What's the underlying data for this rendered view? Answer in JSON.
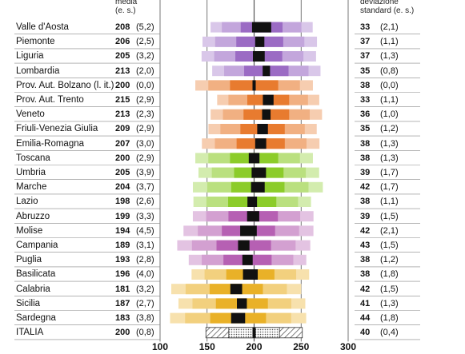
{
  "header": {
    "mean_label_line1": "media",
    "mean_label_line2": "(e. s.)",
    "sd_label_line1": "deviazione",
    "sd_label_line2": "standard (e. s.)"
  },
  "chart_data": {
    "type": "table",
    "xlim": [
      100,
      300
    ],
    "x_ticks": [
      "100",
      "150",
      "200",
      "250",
      "300"
    ],
    "grid": true,
    "columns": [
      "media",
      "(e. s.)",
      "deviazione standard",
      "(e. s.)"
    ],
    "rows": [
      {
        "region": "Valle d'Aosta",
        "mean": "208",
        "mean_se": "(5,2)",
        "sd": "33",
        "sd_se": "(2,1)",
        "color": "#9b6bc4"
      },
      {
        "region": "Piemonte",
        "mean": "206",
        "mean_se": "(2,5)",
        "sd": "37",
        "sd_se": "(1,1)",
        "color": "#9b6bc4"
      },
      {
        "region": "Liguria",
        "mean": "205",
        "mean_se": "(3,2)",
        "sd": "37",
        "sd_se": "(1,3)",
        "color": "#9b6bc4"
      },
      {
        "region": "Lombardia",
        "mean": "213",
        "mean_se": "(2,0)",
        "sd": "35",
        "sd_se": "(0,8)",
        "color": "#9b6bc4"
      },
      {
        "region": "Prov. Aut. Bolzano (l. it.)",
        "mean": "200",
        "mean_se": "(0,0)",
        "sd": "38",
        "sd_se": "(0,0)",
        "color": "#e87b2f"
      },
      {
        "region": "Prov. Aut. Trento",
        "mean": "215",
        "mean_se": "(2,9)",
        "sd": "33",
        "sd_se": "(1,1)",
        "color": "#e87b2f"
      },
      {
        "region": "Veneto",
        "mean": "213",
        "mean_se": "(2,3)",
        "sd": "36",
        "sd_se": "(1,0)",
        "color": "#e87b2f"
      },
      {
        "region": "Friuli-Venezia Giulia",
        "mean": "209",
        "mean_se": "(2,9)",
        "sd": "35",
        "sd_se": "(1,2)",
        "color": "#e87b2f"
      },
      {
        "region": "Emilia-Romagna",
        "mean": "207",
        "mean_se": "(3,0)",
        "sd": "38",
        "sd_se": "(1,3)",
        "color": "#e87b2f"
      },
      {
        "region": "Toscana",
        "mean": "200",
        "mean_se": "(2,9)",
        "sd": "38",
        "sd_se": "(1,3)",
        "color": "#8ccc2a"
      },
      {
        "region": "Umbria",
        "mean": "205",
        "mean_se": "(3,9)",
        "sd": "39",
        "sd_se": "(1,7)",
        "color": "#8ccc2a"
      },
      {
        "region": "Marche",
        "mean": "204",
        "mean_se": "(3,7)",
        "sd": "42",
        "sd_se": "(1,7)",
        "color": "#8ccc2a"
      },
      {
        "region": "Lazio",
        "mean": "198",
        "mean_se": "(2,6)",
        "sd": "38",
        "sd_se": "(1,1)",
        "color": "#8ccc2a"
      },
      {
        "region": "Abruzzo",
        "mean": "199",
        "mean_se": "(3,3)",
        "sd": "39",
        "sd_se": "(1,5)",
        "color": "#b660b3"
      },
      {
        "region": "Molise",
        "mean": "194",
        "mean_se": "(4,5)",
        "sd": "42",
        "sd_se": "(2,1)",
        "color": "#b660b3"
      },
      {
        "region": "Campania",
        "mean": "189",
        "mean_se": "(3,1)",
        "sd": "43",
        "sd_se": "(1,5)",
        "color": "#b660b3"
      },
      {
        "region": "Puglia",
        "mean": "193",
        "mean_se": "(2,8)",
        "sd": "38",
        "sd_se": "(1,2)",
        "color": "#b660b3"
      },
      {
        "region": "Basilicata",
        "mean": "196",
        "mean_se": "(4,0)",
        "sd": "38",
        "sd_se": "(1,8)",
        "color": "#e9b128"
      },
      {
        "region": "Calabria",
        "mean": "181",
        "mean_se": "(3,2)",
        "sd": "42",
        "sd_se": "(1,5)",
        "color": "#e9b128"
      },
      {
        "region": "Sicilia",
        "mean": "187",
        "mean_se": "(2,7)",
        "sd": "41",
        "sd_se": "(1,3)",
        "color": "#e9b128"
      },
      {
        "region": "Sardegna",
        "mean": "183",
        "mean_se": "(3,8)",
        "sd": "44",
        "sd_se": "(1,8)",
        "color": "#e9b128"
      },
      {
        "region": "ITALIA",
        "mean": "200",
        "mean_se": "(0,8)",
        "sd": "40",
        "sd_se": "(0,4)",
        "color": "#ffffff"
      }
    ]
  }
}
